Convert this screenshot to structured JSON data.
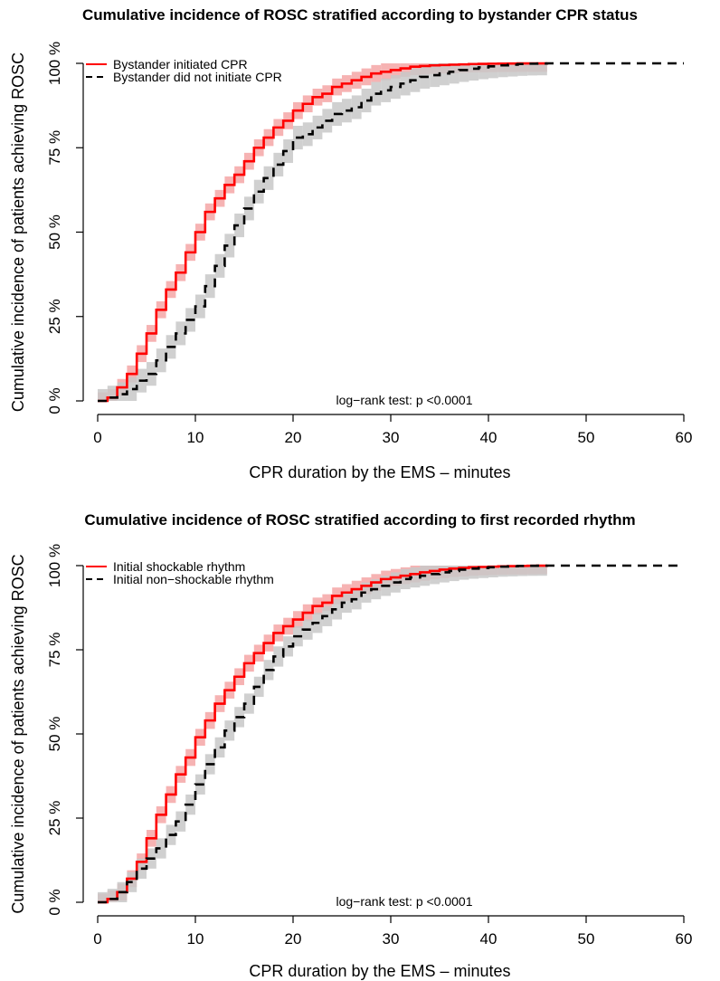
{
  "chart_data": [
    {
      "type": "line",
      "title": "Cumulative incidence of ROSC stratified according to bystander CPR status",
      "xlabel": "CPR duration by the EMS – minutes",
      "ylabel": "Cumulative incidence of patients achieving ROSC",
      "xlim": [
        0,
        60
      ],
      "ylim": [
        0,
        100
      ],
      "xticks": [
        "0",
        "10",
        "20",
        "30",
        "40",
        "50",
        "60"
      ],
      "yticks": [
        "0 %",
        "25 %",
        "50 %",
        "75 %",
        "100 %"
      ],
      "legend_position": "top-left",
      "annotation": "log−rank test: p <0.0001",
      "grid": false,
      "series": [
        {
          "name": "Bystander initiated CPR",
          "color": "#ff0000",
          "band_color": "#f4a6a6",
          "line_style": "solid",
          "x": [
            0,
            1,
            2,
            3,
            4,
            5,
            6,
            7,
            8,
            9,
            10,
            11,
            12,
            13,
            14,
            15,
            16,
            17,
            18,
            19,
            20,
            21,
            22,
            23,
            24,
            25,
            26,
            27,
            28,
            29,
            30,
            31,
            32,
            33,
            34,
            35,
            36,
            37,
            38,
            39,
            40,
            41,
            42,
            43,
            44,
            45,
            46
          ],
          "y": [
            0,
            1,
            4,
            8,
            14,
            20,
            27,
            33,
            38,
            44,
            50,
            56,
            60,
            64,
            67,
            71,
            75,
            78,
            81,
            83,
            86,
            88,
            90,
            91,
            93,
            94,
            95,
            96,
            97,
            97.5,
            98,
            98.5,
            99,
            99.2,
            99.4,
            99.5,
            99.6,
            99.7,
            99.8,
            99.85,
            99.9,
            99.92,
            99.95,
            99.97,
            99.98,
            99.99,
            100
          ],
          "band_halfwidth": 2.5
        },
        {
          "name": "Bystander did not initiate CPR",
          "color": "#000000",
          "band_color": "#c8c8c8",
          "line_style": "dashed",
          "x": [
            0,
            1,
            2,
            3,
            4,
            5,
            6,
            7,
            8,
            9,
            10,
            11,
            12,
            13,
            14,
            15,
            16,
            17,
            18,
            19,
            20,
            21,
            22,
            23,
            24,
            25,
            26,
            27,
            28,
            29,
            30,
            31,
            32,
            33,
            34,
            35,
            36,
            37,
            38,
            39,
            40,
            41,
            42,
            43,
            44,
            45,
            46,
            60
          ],
          "y": [
            0,
            1,
            2,
            3.5,
            6,
            8,
            12,
            16,
            20,
            24,
            28,
            34,
            40,
            46,
            52,
            57,
            62,
            66,
            70,
            74,
            78,
            79,
            81,
            83,
            85,
            86,
            87,
            89,
            91,
            92,
            93,
            94,
            95,
            96,
            96.5,
            97,
            97.5,
            98,
            98.4,
            98.8,
            99.1,
            99.4,
            99.6,
            99.8,
            99.9,
            99.95,
            100,
            100
          ],
          "band_halfwidth": 3.5
        }
      ]
    },
    {
      "type": "line",
      "title": "Cumulative incidence of ROSC stratified according to first recorded rhythm",
      "xlabel": "CPR duration by the EMS – minutes",
      "ylabel": "Cumulative incidence of patients achieving ROSC",
      "xlim": [
        0,
        60
      ],
      "ylim": [
        0,
        100
      ],
      "xticks": [
        "0",
        "10",
        "20",
        "30",
        "40",
        "50",
        "60"
      ],
      "yticks": [
        "0 %",
        "25 %",
        "50 %",
        "75 %",
        "100 %"
      ],
      "legend_position": "top-left",
      "annotation": "log−rank test: p <0.0001",
      "grid": false,
      "series": [
        {
          "name": "Initial shockable rhythm",
          "color": "#ff0000",
          "band_color": "#f4a6a6",
          "line_style": "solid",
          "x": [
            0,
            1,
            2,
            3,
            4,
            5,
            6,
            7,
            8,
            9,
            10,
            11,
            12,
            13,
            14,
            15,
            16,
            17,
            18,
            19,
            20,
            21,
            22,
            23,
            24,
            25,
            26,
            27,
            28,
            29,
            30,
            31,
            32,
            33,
            34,
            35,
            36,
            37,
            38,
            39,
            40,
            41,
            42,
            43,
            44,
            45,
            46
          ],
          "y": [
            0,
            1,
            3,
            7,
            12,
            19,
            26,
            32,
            38,
            43,
            49,
            54,
            59,
            63,
            67,
            71,
            74,
            77,
            80,
            82,
            84,
            86,
            88,
            89,
            91,
            92,
            93,
            94,
            95,
            96,
            96.5,
            97,
            97.5,
            98,
            98.4,
            98.8,
            99.1,
            99.3,
            99.5,
            99.6,
            99.7,
            99.8,
            99.85,
            99.9,
            99.95,
            99.98,
            100
          ],
          "band_halfwidth": 2.5
        },
        {
          "name": "Initial non−shockable rhythm",
          "color": "#000000",
          "band_color": "#c8c8c8",
          "line_style": "dashed",
          "x": [
            0,
            1,
            2,
            3,
            4,
            5,
            6,
            7,
            8,
            9,
            10,
            11,
            12,
            13,
            14,
            15,
            16,
            17,
            18,
            19,
            20,
            21,
            22,
            23,
            24,
            25,
            26,
            27,
            28,
            29,
            30,
            31,
            32,
            33,
            34,
            35,
            36,
            37,
            38,
            39,
            40,
            41,
            42,
            43,
            44,
            45,
            46,
            60
          ],
          "y": [
            0,
            1,
            3,
            6,
            10,
            13,
            16,
            20,
            24,
            29,
            35,
            41,
            46,
            51,
            55,
            59,
            64,
            69,
            73,
            76,
            79,
            81,
            83,
            85,
            87,
            89,
            90,
            92,
            93,
            94,
            95,
            96,
            96.5,
            97,
            97.5,
            98,
            98.4,
            98.8,
            99.1,
            99.3,
            99.5,
            99.7,
            99.8,
            99.9,
            99.95,
            99.98,
            100,
            100
          ],
          "band_halfwidth": 3.0
        }
      ]
    }
  ]
}
